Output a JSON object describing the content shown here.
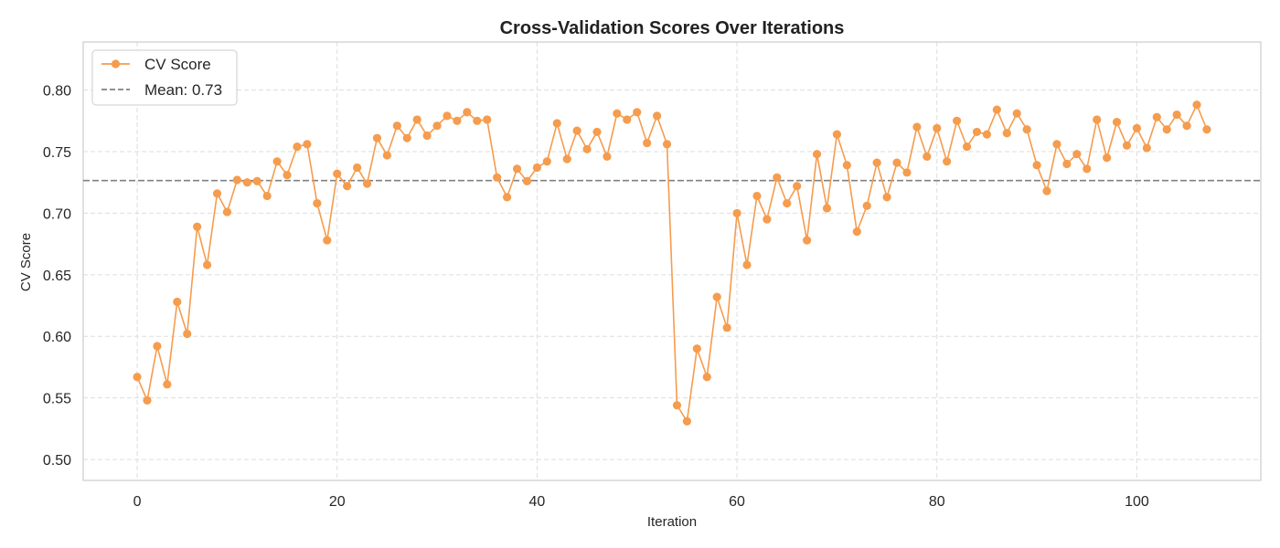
{
  "chart_data": {
    "type": "line",
    "title": "Cross-Validation Scores Over Iterations",
    "xlabel": "Iteration",
    "ylabel": "CV Score",
    "xlim": [
      -5.4,
      112.4
    ],
    "ylim": [
      0.483,
      0.839
    ],
    "xticks": [
      0,
      20,
      40,
      60,
      80,
      100
    ],
    "yticks": [
      0.5,
      0.55,
      0.6,
      0.65,
      0.7,
      0.75,
      0.8
    ],
    "ytick_labels": [
      "0.50",
      "0.55",
      "0.60",
      "0.65",
      "0.70",
      "0.75",
      "0.80"
    ],
    "grid": true,
    "legend_position": "upper-left",
    "series": [
      {
        "name": "CV Score",
        "color": "#f59c4e",
        "marker": "circle",
        "x": [
          0,
          1,
          2,
          3,
          4,
          5,
          6,
          7,
          8,
          9,
          10,
          11,
          12,
          13,
          14,
          15,
          16,
          17,
          18,
          19,
          20,
          21,
          22,
          23,
          24,
          25,
          26,
          27,
          28,
          29,
          30,
          31,
          32,
          33,
          34,
          35,
          36,
          37,
          38,
          39,
          40,
          41,
          42,
          43,
          44,
          45,
          46,
          47,
          48,
          49,
          50,
          51,
          52,
          53,
          54,
          55,
          56,
          57,
          58,
          59,
          60,
          61,
          62,
          63,
          64,
          65,
          66,
          67,
          68,
          69,
          70,
          71,
          72,
          73,
          74,
          75,
          76,
          77,
          78,
          79,
          80,
          81,
          82,
          83,
          84,
          85,
          86,
          87,
          88,
          89,
          90,
          91,
          92,
          93,
          94,
          95,
          96,
          97,
          98,
          99,
          100,
          101,
          102,
          103,
          104,
          105,
          106,
          107
        ],
        "y": [
          0.567,
          0.548,
          0.592,
          0.561,
          0.628,
          0.602,
          0.689,
          0.658,
          0.716,
          0.701,
          0.727,
          0.725,
          0.726,
          0.714,
          0.742,
          0.731,
          0.754,
          0.756,
          0.708,
          0.678,
          0.732,
          0.722,
          0.737,
          0.724,
          0.761,
          0.747,
          0.771,
          0.761,
          0.776,
          0.763,
          0.771,
          0.779,
          0.775,
          0.782,
          0.775,
          0.776,
          0.729,
          0.713,
          0.736,
          0.726,
          0.737,
          0.742,
          0.773,
          0.744,
          0.767,
          0.752,
          0.766,
          0.746,
          0.781,
          0.776,
          0.782,
          0.757,
          0.779,
          0.756,
          0.544,
          0.531,
          0.59,
          0.567,
          0.632,
          0.607,
          0.7,
          0.658,
          0.714,
          0.695,
          0.729,
          0.708,
          0.722,
          0.678,
          0.748,
          0.704,
          0.764,
          0.739,
          0.685,
          0.706,
          0.741,
          0.713,
          0.741,
          0.733,
          0.77,
          0.746,
          0.769,
          0.742,
          0.775,
          0.754,
          0.766,
          0.764,
          0.784,
          0.765,
          0.781,
          0.768,
          0.739,
          0.718,
          0.756,
          0.74,
          0.748,
          0.736,
          0.776,
          0.745,
          0.774,
          0.755,
          0.769,
          0.753,
          0.778,
          0.768,
          0.78,
          0.771,
          0.788,
          0.768
        ]
      }
    ],
    "reference_lines": [
      {
        "name": "Mean: 0.73",
        "value": 0.7265,
        "color": "#808080",
        "style": "dashed"
      }
    ]
  }
}
